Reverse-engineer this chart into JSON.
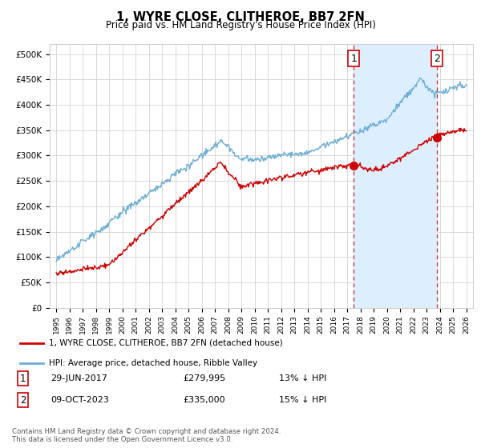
{
  "title": "1, WYRE CLOSE, CLITHEROE, BB7 2FN",
  "subtitle": "Price paid vs. HM Land Registry's House Price Index (HPI)",
  "ylabel_ticks": [
    "£0",
    "£50K",
    "£100K",
    "£150K",
    "£200K",
    "£250K",
    "£300K",
    "£350K",
    "£400K",
    "£450K",
    "£500K"
  ],
  "ytick_values": [
    0,
    50000,
    100000,
    150000,
    200000,
    250000,
    300000,
    350000,
    400000,
    450000,
    500000
  ],
  "ylim": [
    0,
    520000
  ],
  "xlim_start": 1994.5,
  "xlim_end": 2026.5,
  "transaction1": {
    "date_x": 2017.49,
    "price": 279995,
    "label": "1"
  },
  "transaction2": {
    "date_x": 2023.77,
    "price": 335000,
    "label": "2"
  },
  "legend_line1": "1, WYRE CLOSE, CLITHEROE, BB7 2FN (detached house)",
  "legend_line2": "HPI: Average price, detached house, Ribble Valley",
  "footnote": "Contains HM Land Registry data © Crown copyright and database right 2024.\nThis data is licensed under the Open Government Licence v3.0.",
  "hpi_color": "#6baed6",
  "price_color": "#cc0000",
  "dashed_color": "#cc0000",
  "background_color": "#ffffff",
  "grid_color": "#d8d8d8",
  "shade_color": "#ddeeff"
}
